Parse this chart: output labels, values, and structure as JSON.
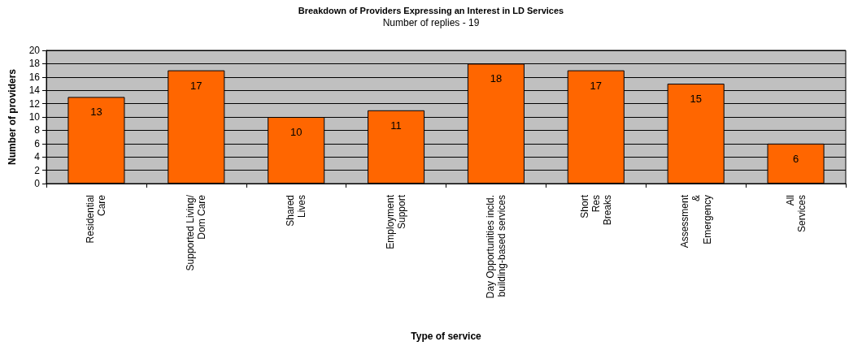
{
  "chart_data": {
    "type": "bar",
    "title": "Breakdown of Providers Expressing an Interest in LD Services",
    "subtitle": "Number of replies - 19",
    "xlabel": "Type of service",
    "ylabel": "Number of providers",
    "categories": [
      "Residential\nCare",
      "Supported Living/\nDom Care",
      "Shared\nLives",
      "Employment\nSupport",
      "Day Opportunities incld.\nbuilding-based services",
      "Short\nRes\nBreaks",
      "Assessment\n&\nEmergency",
      "All\nServices"
    ],
    "values": [
      13,
      17,
      10,
      11,
      18,
      17,
      15,
      6
    ],
    "color": "#ff6600",
    "ylim": [
      0,
      20
    ],
    "yticks": [
      0,
      2,
      4,
      6,
      8,
      10,
      12,
      14,
      16,
      18,
      20
    ],
    "grid": "y",
    "data_labels": true
  }
}
